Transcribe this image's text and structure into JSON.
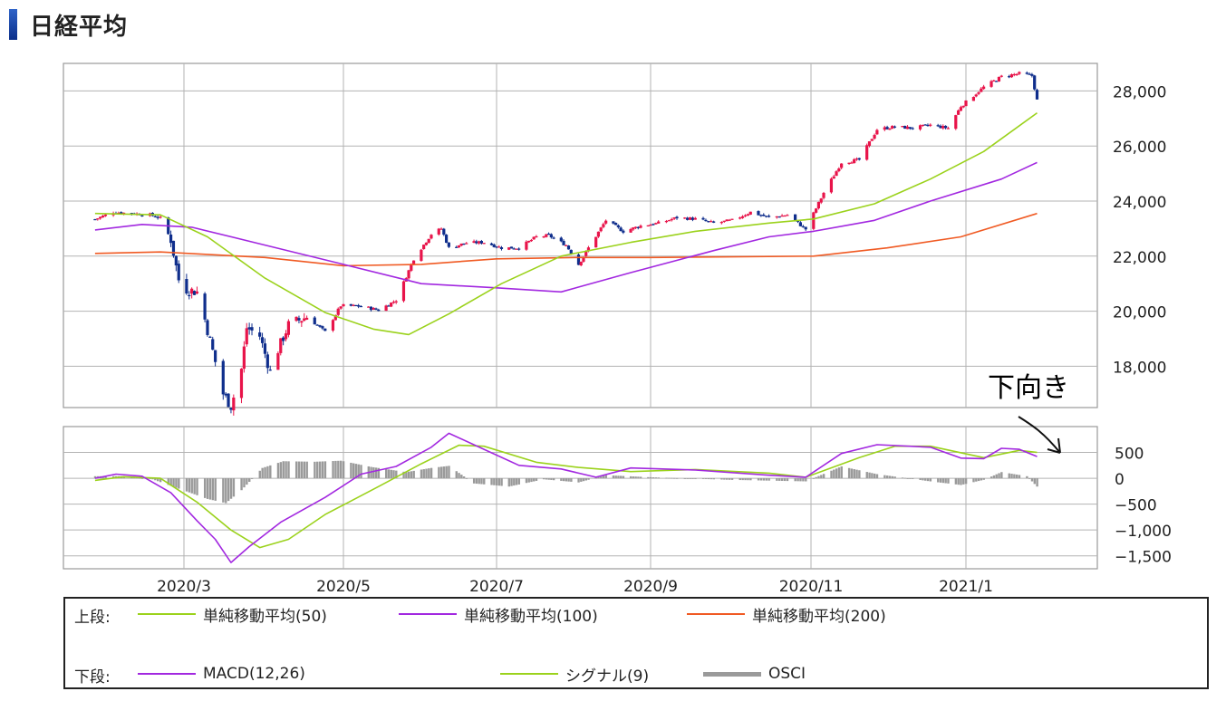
{
  "page_title": "日経平均",
  "chart_data": [
    {
      "type": "candlestick",
      "panel": "upper",
      "ylim": [
        16500,
        29000
      ],
      "y_ticks": [
        "18,000",
        "20,000",
        "22,000",
        "24,000",
        "26,000",
        "28,000"
      ],
      "y_tick_values": [
        18000,
        20000,
        22000,
        24000,
        26000,
        28000
      ],
      "grid": true,
      "x_period": [
        "2020-01-27",
        "2021-01-29"
      ],
      "x_ticks": [
        "2020/3",
        "2020/5",
        "2020/7",
        "2020/9",
        "2020/11",
        "2021/1"
      ],
      "price_close": [
        [
          "2020-01-27",
          23340
        ],
        [
          "2020-02-03",
          23600
        ],
        [
          "2020-02-17",
          23500
        ],
        [
          "2020-02-21",
          23380
        ],
        [
          "2020-02-25",
          22600
        ],
        [
          "2020-02-28",
          21140
        ],
        [
          "2020-03-02",
          20800
        ],
        [
          "2020-03-06",
          20700
        ],
        [
          "2020-03-09",
          19700
        ],
        [
          "2020-03-12",
          18550
        ],
        [
          "2020-03-16",
          17000
        ],
        [
          "2020-03-19",
          16550
        ],
        [
          "2020-03-23",
          17900
        ],
        [
          "2020-03-25",
          19400
        ],
        [
          "2020-03-30",
          19100
        ],
        [
          "2020-04-03",
          17800
        ],
        [
          "2020-04-06",
          18600
        ],
        [
          "2020-04-10",
          19500
        ],
        [
          "2020-04-17",
          19800
        ],
        [
          "2020-04-24",
          19250
        ],
        [
          "2020-04-30",
          20200
        ],
        [
          "2020-05-08",
          20180
        ],
        [
          "2020-05-15",
          20040
        ],
        [
          "2020-05-22",
          20400
        ],
        [
          "2020-05-29",
          21900
        ],
        [
          "2020-06-05",
          22800
        ],
        [
          "2020-06-09",
          23000
        ],
        [
          "2020-06-12",
          22300
        ],
        [
          "2020-06-19",
          22480
        ],
        [
          "2020-06-26",
          22500
        ],
        [
          "2020-07-03",
          22300
        ],
        [
          "2020-07-10",
          22300
        ],
        [
          "2020-07-17",
          22700
        ],
        [
          "2020-07-22",
          22750
        ],
        [
          "2020-07-29",
          22400
        ],
        [
          "2020-08-03",
          21700
        ],
        [
          "2020-08-07",
          22300
        ],
        [
          "2020-08-14",
          23300
        ],
        [
          "2020-08-21",
          22900
        ],
        [
          "2020-08-28",
          23100
        ],
        [
          "2020-09-04",
          23200
        ],
        [
          "2020-09-11",
          23400
        ],
        [
          "2020-09-18",
          23350
        ],
        [
          "2020-09-25",
          23200
        ],
        [
          "2020-10-02",
          23300
        ],
        [
          "2020-10-09",
          23600
        ],
        [
          "2020-10-16",
          23400
        ],
        [
          "2020-10-23",
          23500
        ],
        [
          "2020-10-30",
          22980
        ],
        [
          "2020-11-06",
          24300
        ],
        [
          "2020-11-13",
          25400
        ],
        [
          "2020-11-20",
          25500
        ],
        [
          "2020-11-27",
          26600
        ],
        [
          "2020-12-04",
          26700
        ],
        [
          "2020-12-11",
          26650
        ],
        [
          "2020-12-18",
          26760
        ],
        [
          "2020-12-25",
          26650
        ],
        [
          "2020-12-30",
          27440
        ],
        [
          "2021-01-08",
          28140
        ],
        [
          "2021-01-15",
          28520
        ],
        [
          "2021-01-22",
          28630
        ],
        [
          "2021-01-27",
          28550
        ],
        [
          "2021-01-29",
          27660
        ]
      ],
      "ma50": [
        [
          "2020-01-27",
          23550
        ],
        [
          "2020-02-21",
          23500
        ],
        [
          "2020-03-10",
          22700
        ],
        [
          "2020-04-01",
          21200
        ],
        [
          "2020-04-24",
          19950
        ],
        [
          "2020-05-13",
          19350
        ],
        [
          "2020-05-27",
          19150
        ],
        [
          "2020-06-12",
          19900
        ],
        [
          "2020-07-03",
          21000
        ],
        [
          "2020-07-27",
          22000
        ],
        [
          "2020-08-24",
          22500
        ],
        [
          "2020-09-18",
          22900
        ],
        [
          "2020-10-16",
          23200
        ],
        [
          "2020-11-02",
          23350
        ],
        [
          "2020-11-26",
          23900
        ],
        [
          "2020-12-18",
          24800
        ],
        [
          "2021-01-08",
          25800
        ],
        [
          "2021-01-29",
          27200
        ]
      ],
      "ma100": [
        [
          "2020-01-27",
          22950
        ],
        [
          "2020-02-14",
          23150
        ],
        [
          "2020-03-04",
          23050
        ],
        [
          "2020-04-01",
          22400
        ],
        [
          "2020-05-01",
          21700
        ],
        [
          "2020-06-01",
          21000
        ],
        [
          "2020-07-01",
          20850
        ],
        [
          "2020-07-27",
          20700
        ],
        [
          "2020-08-24",
          21400
        ],
        [
          "2020-09-25",
          22200
        ],
        [
          "2020-10-16",
          22700
        ],
        [
          "2020-11-02",
          22900
        ],
        [
          "2020-11-26",
          23300
        ],
        [
          "2020-12-18",
          24000
        ],
        [
          "2021-01-15",
          24800
        ],
        [
          "2021-01-29",
          25400
        ]
      ],
      "ma200": [
        [
          "2020-01-27",
          22100
        ],
        [
          "2020-02-21",
          22150
        ],
        [
          "2020-04-01",
          21950
        ],
        [
          "2020-05-01",
          21650
        ],
        [
          "2020-06-01",
          21700
        ],
        [
          "2020-07-01",
          21900
        ],
        [
          "2020-08-03",
          21950
        ],
        [
          "2020-09-01",
          21950
        ],
        [
          "2020-11-02",
          22000
        ],
        [
          "2020-12-01",
          22300
        ],
        [
          "2020-12-30",
          22700
        ],
        [
          "2021-01-29",
          23550
        ]
      ],
      "colors": {
        "up": "#e8144a",
        "down": "#0f2e8c",
        "ma50": "#9bd21c",
        "ma100": "#a228e0",
        "ma200": "#f05a23"
      }
    },
    {
      "type": "macd",
      "panel": "lower",
      "ylim": [
        -1750,
        1000
      ],
      "y_ticks": [
        "500",
        "0",
        "−500",
        "−1,000",
        "−1,500"
      ],
      "y_tick_values": [
        500,
        0,
        -500,
        -1000,
        -1500
      ],
      "grid": true,
      "macd": [
        [
          "2020-01-27",
          0
        ],
        [
          "2020-02-04",
          80
        ],
        [
          "2020-02-14",
          40
        ],
        [
          "2020-02-25",
          -280
        ],
        [
          "2020-03-06",
          -820
        ],
        [
          "2020-03-13",
          -1180
        ],
        [
          "2020-03-19",
          -1630
        ],
        [
          "2020-03-26",
          -1320
        ],
        [
          "2020-04-07",
          -850
        ],
        [
          "2020-04-24",
          -370
        ],
        [
          "2020-05-08",
          80
        ],
        [
          "2020-05-22",
          230
        ],
        [
          "2020-06-05",
          600
        ],
        [
          "2020-06-12",
          870
        ],
        [
          "2020-06-26",
          560
        ],
        [
          "2020-07-10",
          250
        ],
        [
          "2020-07-27",
          180
        ],
        [
          "2020-08-10",
          20
        ],
        [
          "2020-08-24",
          200
        ],
        [
          "2020-09-18",
          160
        ],
        [
          "2020-10-16",
          60
        ],
        [
          "2020-10-30",
          20
        ],
        [
          "2020-11-13",
          480
        ],
        [
          "2020-11-27",
          650
        ],
        [
          "2020-12-18",
          600
        ],
        [
          "2020-12-30",
          390
        ],
        [
          "2021-01-08",
          380
        ],
        [
          "2021-01-15",
          580
        ],
        [
          "2021-01-22",
          560
        ],
        [
          "2021-01-29",
          420
        ]
      ],
      "signal": [
        [
          "2020-01-27",
          -40
        ],
        [
          "2020-02-07",
          30
        ],
        [
          "2020-02-21",
          0
        ],
        [
          "2020-03-06",
          -460
        ],
        [
          "2020-03-19",
          -1000
        ],
        [
          "2020-03-30",
          -1340
        ],
        [
          "2020-04-10",
          -1180
        ],
        [
          "2020-04-24",
          -700
        ],
        [
          "2020-05-15",
          -160
        ],
        [
          "2020-06-01",
          280
        ],
        [
          "2020-06-16",
          640
        ],
        [
          "2020-06-26",
          620
        ],
        [
          "2020-07-17",
          310
        ],
        [
          "2020-08-03",
          210
        ],
        [
          "2020-08-24",
          130
        ],
        [
          "2020-09-18",
          170
        ],
        [
          "2020-10-16",
          100
        ],
        [
          "2020-10-30",
          20
        ],
        [
          "2020-11-20",
          400
        ],
        [
          "2020-12-04",
          620
        ],
        [
          "2020-12-18",
          620
        ],
        [
          "2021-01-08",
          400
        ],
        [
          "2021-01-22",
          540
        ],
        [
          "2021-01-29",
          500
        ]
      ],
      "osci": [
        [
          "2020-01-27",
          40
        ],
        [
          "2020-02-07",
          40
        ],
        [
          "2020-02-18",
          -20
        ],
        [
          "2020-02-28",
          -200
        ],
        [
          "2020-03-10",
          -400
        ],
        [
          "2020-03-17",
          -480
        ],
        [
          "2020-03-23",
          -230
        ],
        [
          "2020-03-31",
          200
        ],
        [
          "2020-04-08",
          330
        ],
        [
          "2020-04-20",
          320
        ],
        [
          "2020-04-30",
          340
        ],
        [
          "2020-05-12",
          220
        ],
        [
          "2020-05-26",
          120
        ],
        [
          "2020-06-05",
          200
        ],
        [
          "2020-06-12",
          240
        ],
        [
          "2020-06-22",
          -100
        ],
        [
          "2020-07-06",
          -160
        ],
        [
          "2020-07-20",
          -20
        ],
        [
          "2020-08-03",
          -80
        ],
        [
          "2020-08-14",
          60
        ],
        [
          "2020-09-01",
          20
        ],
        [
          "2020-10-01",
          -30
        ],
        [
          "2020-10-30",
          -60
        ],
        [
          "2020-11-13",
          230
        ],
        [
          "2020-11-27",
          80
        ],
        [
          "2020-12-18",
          -60
        ],
        [
          "2020-12-30",
          -130
        ],
        [
          "2021-01-08",
          -30
        ],
        [
          "2021-01-15",
          120
        ],
        [
          "2021-01-25",
          40
        ],
        [
          "2021-01-29",
          -160
        ]
      ],
      "colors": {
        "macd": "#a228e0",
        "signal": "#9bd21c",
        "osci": "#9a9a9a"
      }
    }
  ],
  "annotation": "下向き",
  "legend": {
    "upper_label": "上段:",
    "lower_label": "下段:",
    "ma50_label": "単純移動平均(50)",
    "ma100_label": "単純移動平均(100)",
    "ma200_label": "単純移動平均(200)",
    "macd_label": "MACD(12,26)",
    "signal_label": "シグナル(9)",
    "osci_label": "OSCI"
  }
}
